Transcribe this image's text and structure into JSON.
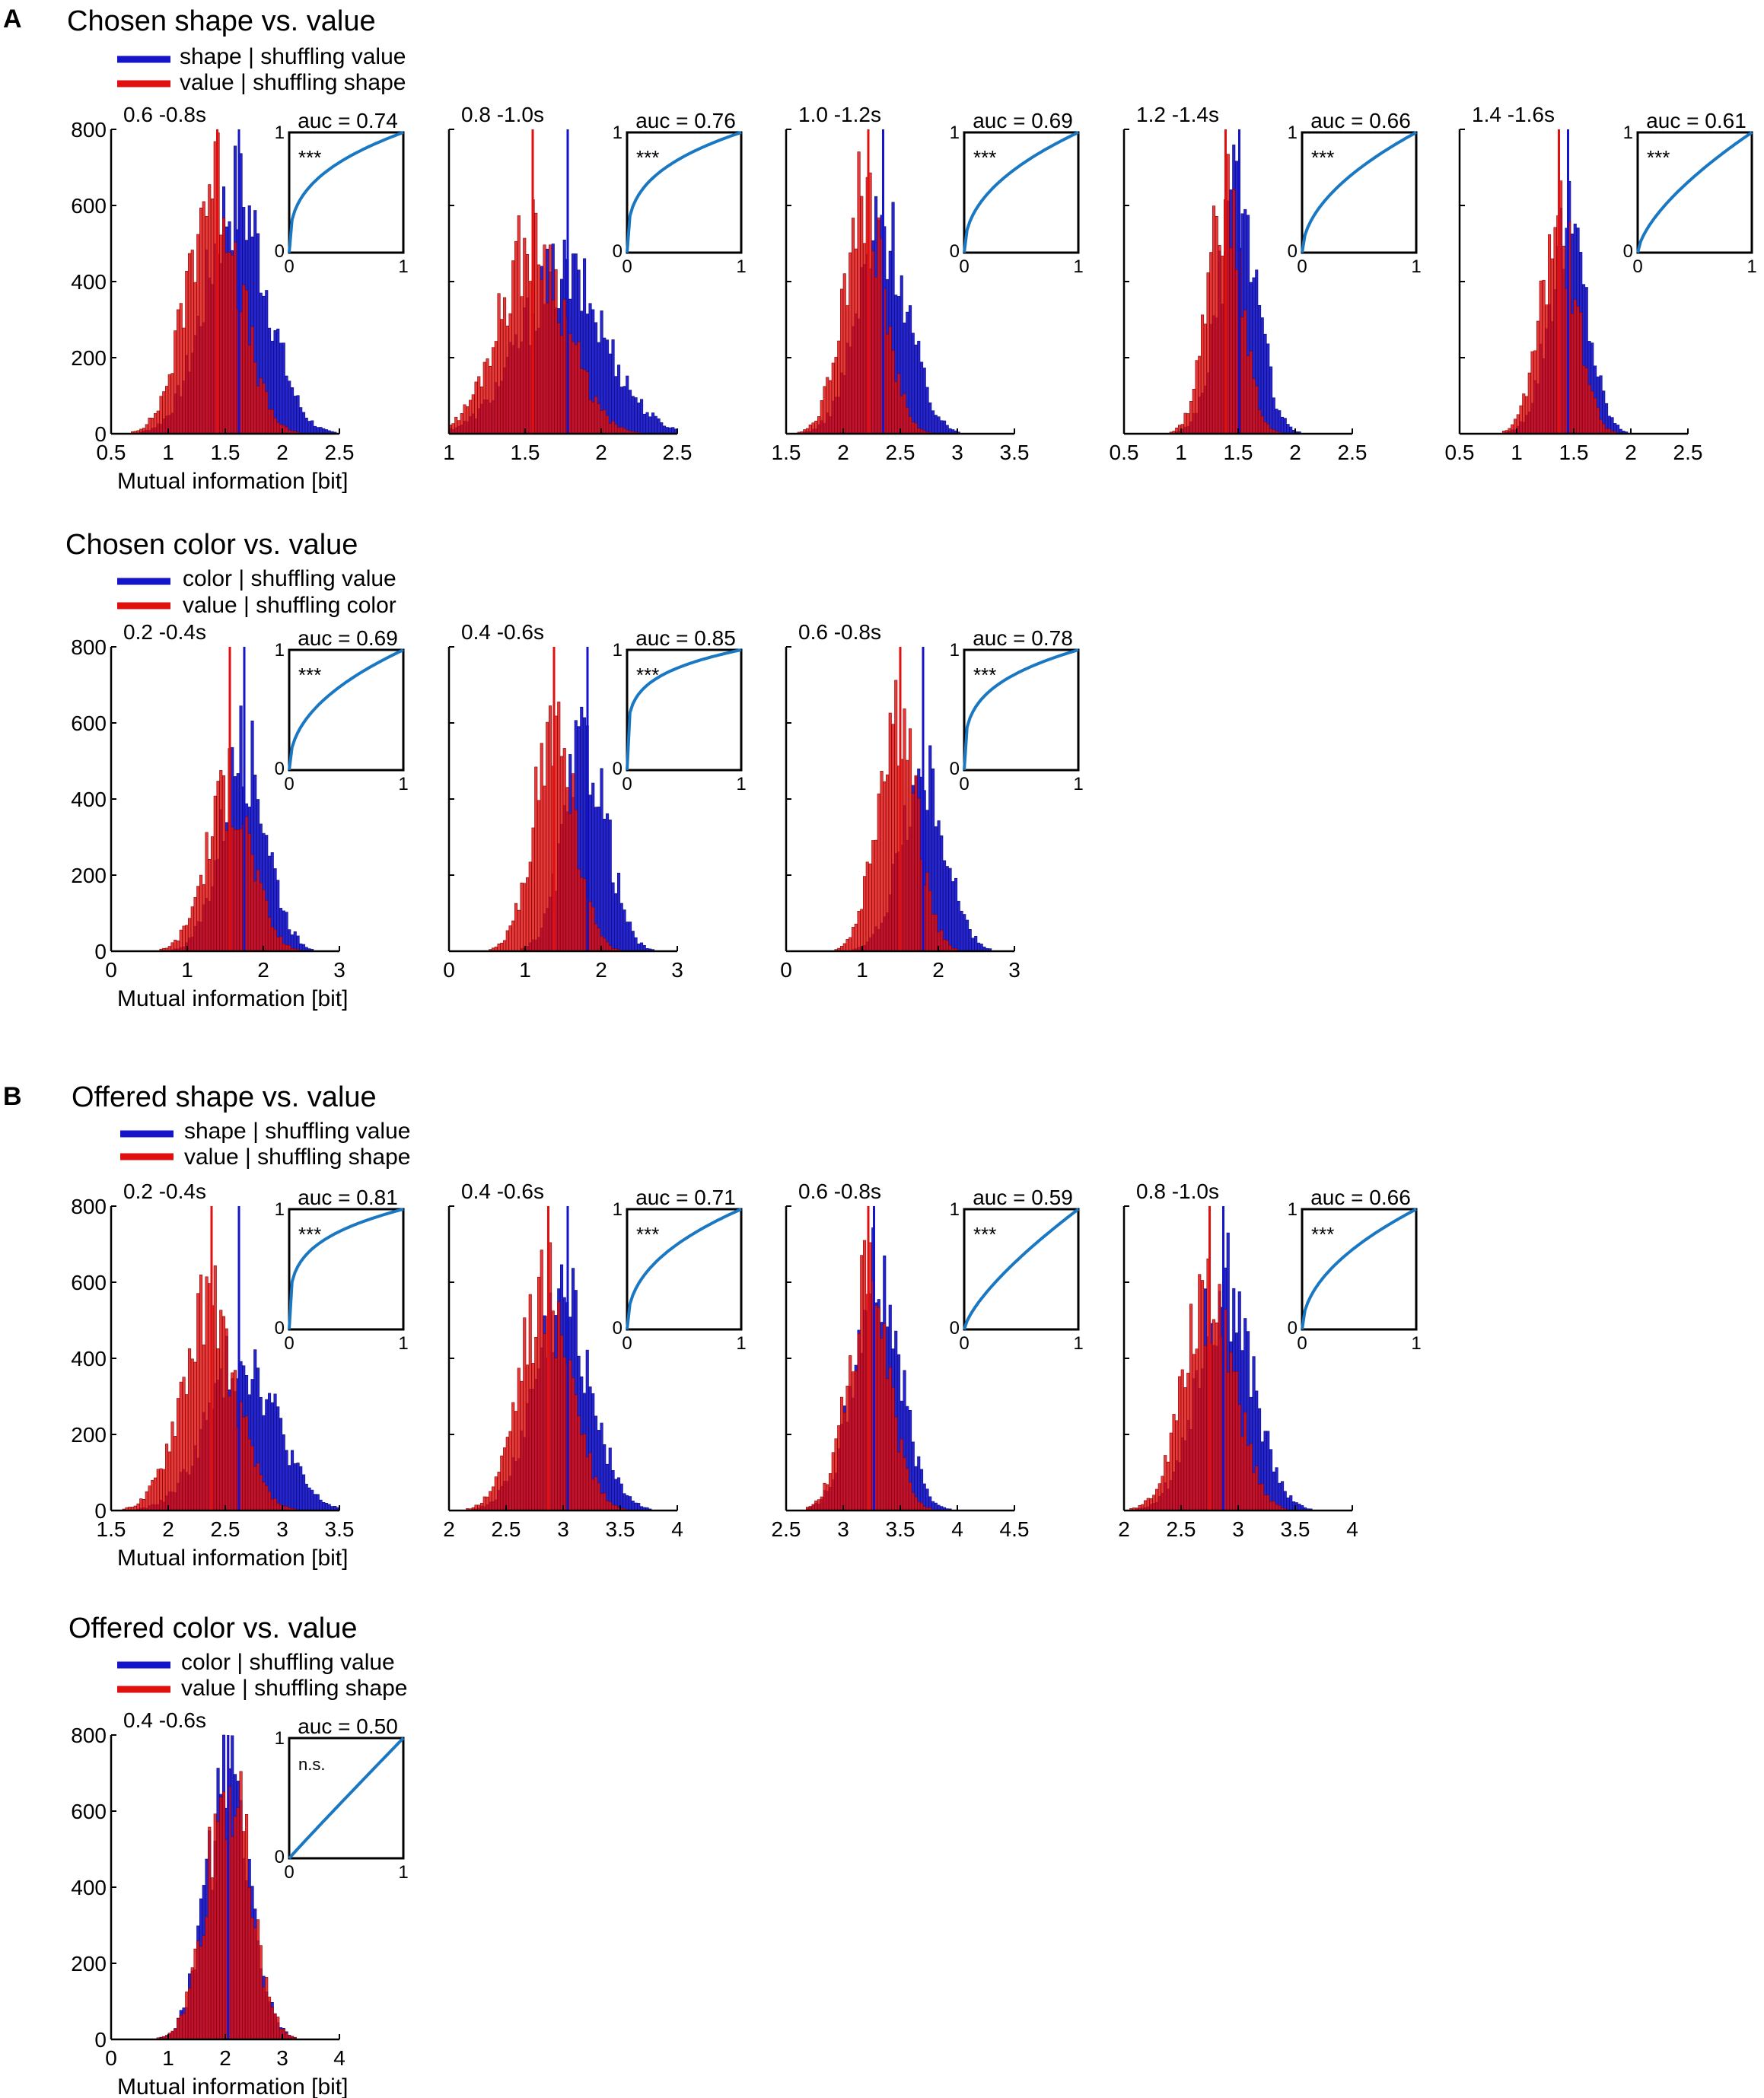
{
  "panels": {
    "A": "A",
    "B": "B"
  },
  "sections": [
    {
      "title": "Chosen shape vs. value",
      "legend": [
        {
          "label": "shape | shuffling value",
          "color": "#1414c8"
        },
        {
          "label": "value | shuffling shape",
          "color": "#e01010"
        }
      ]
    },
    {
      "title": "Chosen color vs. value",
      "legend": [
        {
          "label": "color | shuffling value",
          "color": "#1414c8"
        },
        {
          "label": "value | shuffling color",
          "color": "#e01010"
        }
      ]
    },
    {
      "title": "Offered shape vs. value",
      "legend": [
        {
          "label": "shape | shuffling value",
          "color": "#1414c8"
        },
        {
          "label": "value | shuffling shape",
          "color": "#e01010"
        }
      ]
    },
    {
      "title": "Offered color vs. value",
      "legend": [
        {
          "label": "color | shuffling value",
          "color": "#1414c8"
        },
        {
          "label": "value | shuffling shape",
          "color": "#e01010"
        }
      ]
    }
  ],
  "colors": {
    "blue": "#1414c8",
    "red": "#e01010",
    "roc": "#1a78c2",
    "axis": "#000000"
  },
  "chart_data": [
    {
      "type": "bar",
      "section": 0,
      "window": "0.6 -0.8s",
      "xlim": [
        0.5,
        2.5
      ],
      "xticks": [
        "0.5",
        "1",
        "1.5",
        "2",
        "2.5"
      ],
      "ylim": [
        0,
        800
      ],
      "yticks": [
        "0",
        "200",
        "400",
        "600",
        "800"
      ],
      "xlabel": "Mutual information [bit]",
      "auc": "auc = 0.74",
      "significance": "***",
      "blue_mean": 1.6,
      "blue_sd": 0.27,
      "blue_peak": 640,
      "red_mean": 1.4,
      "red_sd": 0.23,
      "red_peak": 690,
      "blue_line": 1.62,
      "red_line": 1.43,
      "roc_exp": 0.35,
      "roc_ticks": [
        "0",
        "1"
      ]
    },
    {
      "type": "bar",
      "section": 0,
      "window": "0.8 -1.0s",
      "xlim": [
        1,
        2.5
      ],
      "xticks": [
        "1",
        "1.5",
        "2",
        "2.5"
      ],
      "ylim": [
        0,
        800
      ],
      "yticks": [],
      "xlabel": "",
      "auc": "auc = 0.76",
      "significance": "***",
      "blue_mean": 1.75,
      "blue_sd": 0.28,
      "blue_peak": 430,
      "red_mean": 1.55,
      "red_sd": 0.22,
      "red_peak": 520,
      "blue_line": 1.78,
      "red_line": 1.55,
      "roc_exp": 0.32,
      "roc_ticks": [
        "0",
        "1"
      ]
    },
    {
      "type": "bar",
      "section": 0,
      "window": "1.0 -1.2s",
      "xlim": [
        1.5,
        3.5
      ],
      "xticks": [
        "1.5",
        "2",
        "2.5",
        "3",
        "3.5"
      ],
      "ylim": [
        0,
        800
      ],
      "yticks": [],
      "xlabel": "",
      "auc": "auc = 0.69",
      "significance": "***",
      "blue_mean": 2.35,
      "blue_sd": 0.22,
      "blue_peak": 560,
      "red_mean": 2.18,
      "red_sd": 0.18,
      "red_peak": 640,
      "blue_line": 2.35,
      "red_line": 2.22,
      "roc_exp": 0.45,
      "roc_ticks": [
        "0",
        "1"
      ]
    },
    {
      "type": "bar",
      "section": 0,
      "window": "1.2 -1.4s",
      "xlim": [
        0.5,
        2.5
      ],
      "xticks": [
        "0.5",
        "1",
        "1.5",
        "2",
        "2.5"
      ],
      "ylim": [
        0,
        800
      ],
      "yticks": [],
      "xlabel": "",
      "auc": "auc = 0.66",
      "significance": "***",
      "blue_mean": 1.5,
      "blue_sd": 0.17,
      "blue_peak": 640,
      "red_mean": 1.38,
      "red_sd": 0.15,
      "red_peak": 620,
      "blue_line": 1.51,
      "red_line": 1.39,
      "roc_exp": 0.52,
      "roc_ticks": [
        "0",
        "1"
      ]
    },
    {
      "type": "bar",
      "section": 0,
      "window": "1.4 -1.6s",
      "xlim": [
        0.5,
        2.5
      ],
      "xticks": [
        "0.5",
        "1",
        "1.5",
        "2",
        "2.5"
      ],
      "ylim": [
        0,
        800
      ],
      "yticks": [],
      "xlabel": "",
      "auc": "auc = 0.61",
      "significance": "***",
      "blue_mean": 1.45,
      "blue_sd": 0.17,
      "blue_peak": 560,
      "red_mean": 1.37,
      "red_sd": 0.16,
      "red_peak": 560,
      "blue_line": 1.45,
      "red_line": 1.37,
      "roc_exp": 0.65,
      "roc_ticks": [
        "0",
        "1"
      ]
    },
    {
      "type": "bar",
      "section": 1,
      "window": "0.2 -0.4s",
      "xlim": [
        0,
        3
      ],
      "xticks": [
        "0",
        "1",
        "2",
        "3"
      ],
      "ylim": [
        0,
        800
      ],
      "yticks": [
        "0",
        "200",
        "400",
        "600",
        "800"
      ],
      "xlabel": "Mutual information [bit]",
      "auc": "auc = 0.69",
      "significance": "***",
      "blue_mean": 1.75,
      "blue_sd": 0.3,
      "blue_peak": 540,
      "red_mean": 1.55,
      "red_sd": 0.3,
      "red_peak": 440,
      "blue_line": 1.75,
      "red_line": 1.56,
      "roc_exp": 0.45,
      "roc_ticks": [
        "0",
        "1"
      ]
    },
    {
      "type": "bar",
      "section": 1,
      "window": "0.4 -0.6s",
      "xlim": [
        0,
        3
      ],
      "xticks": [
        "0",
        "1",
        "2",
        "3"
      ],
      "ylim": [
        0,
        800
      ],
      "yticks": [],
      "xlabel": "",
      "auc": "auc = 0.85",
      "significance": "***",
      "blue_mean": 1.8,
      "blue_sd": 0.28,
      "blue_peak": 560,
      "red_mean": 1.38,
      "red_sd": 0.27,
      "red_peak": 600,
      "blue_line": 1.82,
      "red_line": 1.38,
      "roc_exp": 0.2,
      "roc_ticks": [
        "0",
        "1"
      ]
    },
    {
      "type": "bar",
      "section": 1,
      "window": "0.6 -0.8s",
      "xlim": [
        0,
        3
      ],
      "xticks": [
        "0",
        "1",
        "2",
        "3"
      ],
      "ylim": [
        0,
        800
      ],
      "yticks": [],
      "xlabel": "",
      "auc": "auc = 0.78",
      "significance": "***",
      "blue_mean": 1.8,
      "blue_sd": 0.3,
      "blue_peak": 470,
      "red_mean": 1.45,
      "red_sd": 0.26,
      "red_peak": 650,
      "blue_line": 1.8,
      "red_line": 1.5,
      "roc_exp": 0.28,
      "roc_ticks": [
        "0",
        "1"
      ]
    },
    {
      "type": "bar",
      "section": 2,
      "window": "0.2 -0.4s",
      "xlim": [
        1.5,
        3.5
      ],
      "xticks": [
        "1.5",
        "2",
        "2.5",
        "3",
        "3.5"
      ],
      "ylim": [
        0,
        800
      ],
      "yticks": [
        "0",
        "200",
        "400",
        "600",
        "800"
      ],
      "xlabel": "Mutual information [bit]",
      "auc": "auc = 0.81",
      "significance": "***",
      "blue_mean": 2.65,
      "blue_sd": 0.3,
      "blue_peak": 420,
      "red_mean": 2.35,
      "red_sd": 0.24,
      "red_peak": 550,
      "blue_line": 2.62,
      "red_line": 2.38,
      "roc_exp": 0.25,
      "roc_ticks": [
        "0",
        "1"
      ]
    },
    {
      "type": "bar",
      "section": 2,
      "window": "0.4 -0.6s",
      "xlim": [
        2,
        4
      ],
      "xticks": [
        "2",
        "2.5",
        "3",
        "3.5",
        "4"
      ],
      "ylim": [
        0,
        800
      ],
      "yticks": [],
      "xlabel": "",
      "auc": "auc = 0.71",
      "significance": "***",
      "blue_mean": 3.0,
      "blue_sd": 0.25,
      "blue_peak": 560,
      "red_mean": 2.85,
      "red_sd": 0.22,
      "red_peak": 600,
      "blue_line": 3.04,
      "red_line": 2.87,
      "roc_exp": 0.42,
      "roc_ticks": [
        "0",
        "1"
      ]
    },
    {
      "type": "bar",
      "section": 2,
      "window": "0.6 -0.8s",
      "xlim": [
        2.5,
        4.5
      ],
      "xticks": [
        "2.5",
        "3",
        "3.5",
        "4",
        "4.5"
      ],
      "ylim": [
        0,
        800
      ],
      "yticks": [],
      "xlabel": "",
      "auc": "auc = 0.59",
      "significance": "***",
      "blue_mean": 3.3,
      "blue_sd": 0.2,
      "blue_peak": 640,
      "red_mean": 3.22,
      "red_sd": 0.18,
      "red_peak": 600,
      "blue_line": 3.27,
      "red_line": 3.22,
      "roc_exp": 0.72,
      "roc_ticks": [
        "0",
        "1"
      ]
    },
    {
      "type": "bar",
      "section": 2,
      "window": "0.8 -1.0s",
      "xlim": [
        2,
        4
      ],
      "xticks": [
        "2",
        "2.5",
        "3",
        "3.5",
        "4"
      ],
      "ylim": [
        0,
        800
      ],
      "yticks": [],
      "xlabel": "",
      "auc": "auc = 0.66",
      "significance": "***",
      "blue_mean": 2.88,
      "blue_sd": 0.24,
      "blue_peak": 620,
      "red_mean": 2.75,
      "red_sd": 0.22,
      "red_peak": 590,
      "blue_line": 2.87,
      "red_line": 2.75,
      "roc_exp": 0.5,
      "roc_ticks": [
        "0",
        "1"
      ]
    },
    {
      "type": "bar",
      "section": 3,
      "window": "0.4 -0.6s",
      "xlim": [
        0,
        4
      ],
      "xticks": [
        "0",
        "1",
        "2",
        "3",
        "4"
      ],
      "ylim": [
        0,
        800
      ],
      "yticks": [
        "0",
        "200",
        "400",
        "600",
        "800"
      ],
      "xlabel": "Mutual information [bit]",
      "auc": "auc = 0.50",
      "significance": "n.s.",
      "blue_mean": 2.05,
      "blue_sd": 0.38,
      "blue_peak": 700,
      "red_mean": 2.05,
      "red_sd": 0.38,
      "red_peak": 700,
      "blue_line": 2.05,
      "red_line": 2.05,
      "roc_exp": 0.98,
      "roc_ticks": [
        "0",
        "1"
      ]
    }
  ]
}
